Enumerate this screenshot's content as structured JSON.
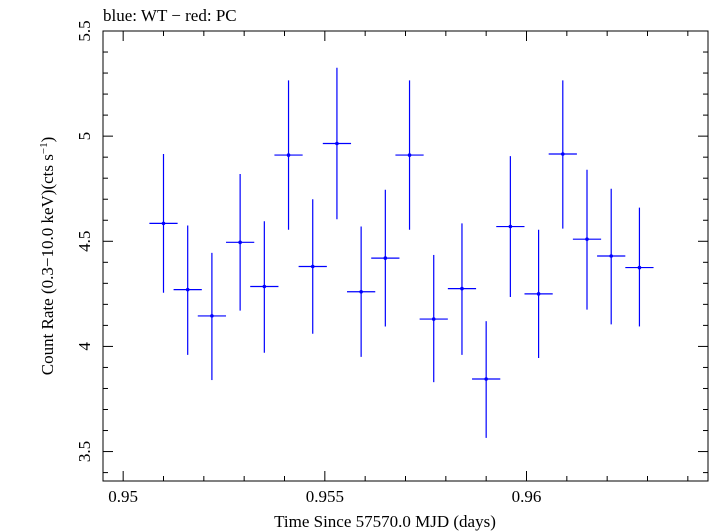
{
  "title": "blue: WT − red: PC",
  "chart_data": {
    "type": "scatter",
    "title": "blue: WT − red: PC",
    "xlabel": "Time Since 57570.0 MJD (days)",
    "ylabel_main": "Count Rate (0.3−10.0 keV)(cts s",
    "ylabel_sup": "−1",
    "ylabel_end": ")",
    "xlim": [
      0.9495,
      0.9645
    ],
    "ylim": [
      3.36,
      5.5
    ],
    "x_ticks": [
      0.95,
      0.955,
      0.96
    ],
    "x_tick_labels": [
      "0.95",
      "0.955",
      "0.96"
    ],
    "y_ticks": [
      3.5,
      4,
      4.5,
      5,
      5.5
    ],
    "y_tick_labels": [
      "3.5",
      "4",
      "4.5",
      "5",
      "5.5"
    ],
    "grid": false,
    "series": [
      {
        "color": "#0000ff",
        "points": [
          {
            "x": 0.951,
            "y": 4.585,
            "xerr": 0.00035,
            "ylo": 4.255,
            "yhi": 4.915
          },
          {
            "x": 0.9516,
            "y": 4.27,
            "xerr": 0.00035,
            "ylo": 3.96,
            "yhi": 4.575
          },
          {
            "x": 0.9522,
            "y": 4.145,
            "xerr": 0.00035,
            "ylo": 3.84,
            "yhi": 4.445
          },
          {
            "x": 0.9529,
            "y": 4.495,
            "xerr": 0.00035,
            "ylo": 4.17,
            "yhi": 4.82
          },
          {
            "x": 0.9535,
            "y": 4.285,
            "xerr": 0.00035,
            "ylo": 3.97,
            "yhi": 4.595
          },
          {
            "x": 0.9541,
            "y": 4.91,
            "xerr": 0.00035,
            "ylo": 4.555,
            "yhi": 5.265
          },
          {
            "x": 0.9547,
            "y": 4.38,
            "xerr": 0.00035,
            "ylo": 4.06,
            "yhi": 4.7
          },
          {
            "x": 0.9553,
            "y": 4.965,
            "xerr": 0.00035,
            "ylo": 4.605,
            "yhi": 5.325
          },
          {
            "x": 0.9559,
            "y": 4.26,
            "xerr": 0.00035,
            "ylo": 3.95,
            "yhi": 4.57
          },
          {
            "x": 0.9565,
            "y": 4.42,
            "xerr": 0.00035,
            "ylo": 4.095,
            "yhi": 4.745
          },
          {
            "x": 0.9571,
            "y": 4.91,
            "xerr": 0.00035,
            "ylo": 4.555,
            "yhi": 5.265
          },
          {
            "x": 0.9577,
            "y": 4.13,
            "xerr": 0.00035,
            "ylo": 3.83,
            "yhi": 4.435
          },
          {
            "x": 0.9584,
            "y": 4.275,
            "xerr": 0.00035,
            "ylo": 3.96,
            "yhi": 4.585
          },
          {
            "x": 0.959,
            "y": 3.845,
            "xerr": 0.00035,
            "ylo": 3.565,
            "yhi": 4.12
          },
          {
            "x": 0.9596,
            "y": 4.57,
            "xerr": 0.00035,
            "ylo": 4.235,
            "yhi": 4.905
          },
          {
            "x": 0.9603,
            "y": 4.25,
            "xerr": 0.00035,
            "ylo": 3.945,
            "yhi": 4.555
          },
          {
            "x": 0.9609,
            "y": 4.915,
            "xerr": 0.00035,
            "ylo": 4.56,
            "yhi": 5.265
          },
          {
            "x": 0.9615,
            "y": 4.51,
            "xerr": 0.00035,
            "ylo": 4.175,
            "yhi": 4.84
          },
          {
            "x": 0.9621,
            "y": 4.43,
            "xerr": 0.00035,
            "ylo": 4.105,
            "yhi": 4.75
          },
          {
            "x": 0.9628,
            "y": 4.375,
            "xerr": 0.00035,
            "ylo": 4.095,
            "yhi": 4.66
          }
        ]
      }
    ]
  }
}
